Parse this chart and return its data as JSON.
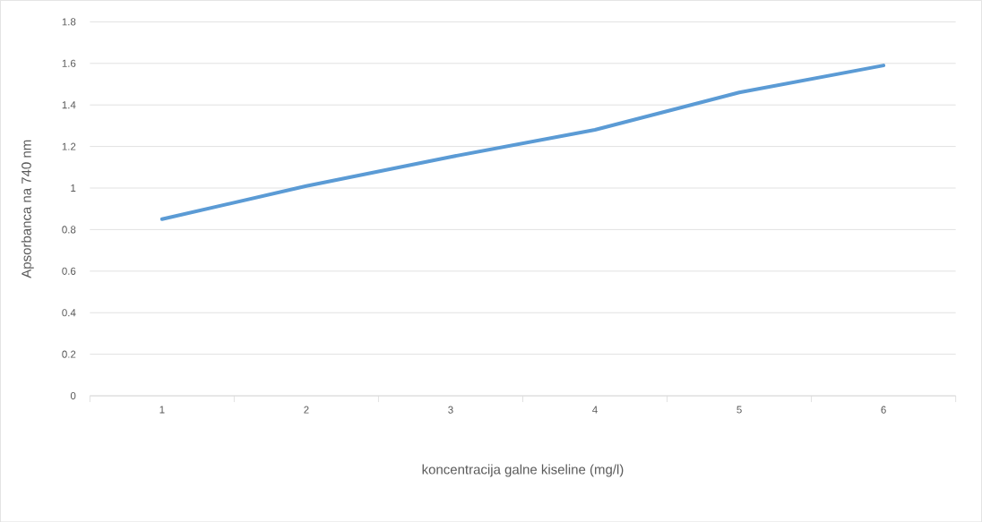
{
  "chart_data": {
    "type": "line",
    "xlabel": "koncentracija galne kiseline (mg/l)",
    "ylabel": "Apsorbanca na 740 nm",
    "categories": [
      "1",
      "2",
      "3",
      "4",
      "5",
      "6"
    ],
    "series": [
      {
        "color": "#5b9bd5",
        "values": [
          0.85,
          1.01,
          1.15,
          1.28,
          1.46,
          1.59
        ]
      }
    ],
    "ylim": [
      0,
      1.8
    ],
    "yticks": [
      0,
      0.2,
      0.4,
      0.6,
      0.8,
      1,
      1.2,
      1.4,
      1.6,
      1.8
    ],
    "grid": "y",
    "marker": "none",
    "line_style": "solid"
  }
}
